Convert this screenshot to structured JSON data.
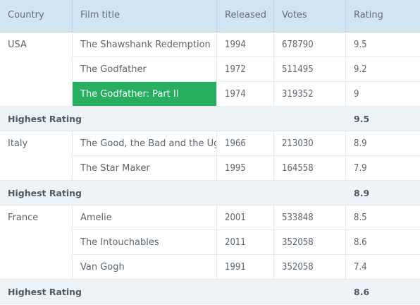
{
  "columns": {
    "country": "Country",
    "title": "Film title",
    "released": "Released",
    "votes": "Votes",
    "rating": "Rating"
  },
  "groups": [
    {
      "country": "USA",
      "films": [
        {
          "title": "The Shawshank Redemption",
          "released": "1994",
          "votes": "678790",
          "rating": "9.5"
        },
        {
          "title": "The Godfather",
          "released": "1972",
          "votes": "511495",
          "rating": "9.2"
        },
        {
          "title": "The Godfather: Part II",
          "released": "1974",
          "votes": "319352",
          "rating": "9"
        }
      ],
      "summary_label": "Highest Rating",
      "summary_value": "9.5"
    },
    {
      "country": "Italy",
      "films": [
        {
          "title": "The Good, the Bad and the Ugly",
          "released": "1966",
          "votes": "213030",
          "rating": "8.9"
        },
        {
          "title": "The Star Maker",
          "released": "1995",
          "votes": "164558",
          "rating": "7.9"
        }
      ],
      "summary_label": "Highest Rating",
      "summary_value": "8.9"
    },
    {
      "country": "France",
      "films": [
        {
          "title": "Amelie",
          "released": "2001",
          "votes": "533848",
          "rating": "8.5"
        },
        {
          "title": "The Intouchables",
          "released": "2011",
          "votes": "352058",
          "rating": "8.6"
        },
        {
          "title": "Van Gogh",
          "released": "1991",
          "votes": "352058",
          "rating": "7.4"
        }
      ],
      "summary_label": "Highest Rating",
      "summary_value": "8.6"
    }
  ],
  "selected_cell": {
    "group": 0,
    "film": 2,
    "column": "title"
  },
  "colors": {
    "header_bg": "#d3e4f1",
    "summary_bg": "#eef3f8",
    "selected_bg": "#27ae60"
  }
}
